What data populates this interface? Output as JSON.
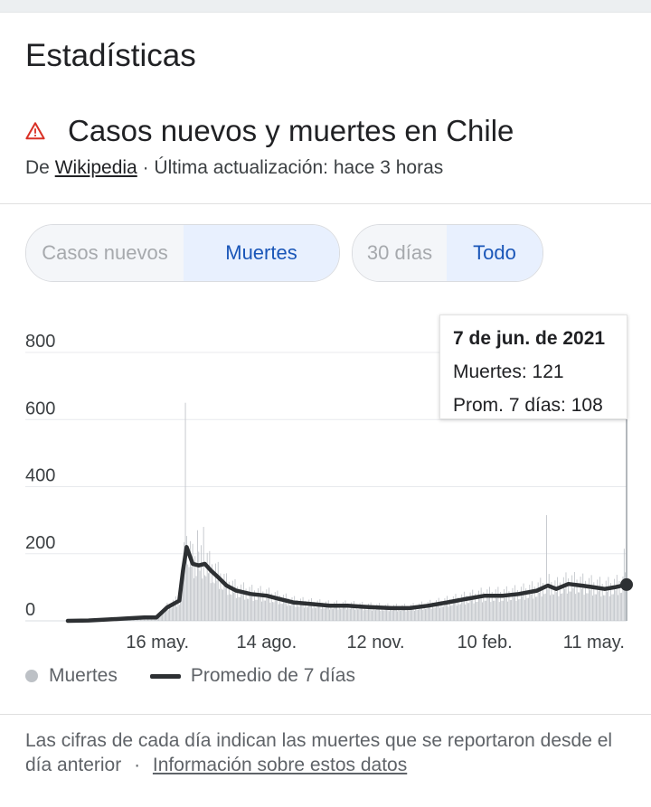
{
  "section_title": "Estadísticas",
  "headline": {
    "icon": "warning-icon",
    "title": "Casos nuevos y muertes en Chile"
  },
  "source": {
    "prefix": "De",
    "link": "Wikipedia",
    "suffix": "· Última actualización: hace 3 horas"
  },
  "metric_toggle": {
    "options": [
      "Casos nuevos",
      "Muertes"
    ],
    "selected": "Muertes"
  },
  "range_toggle": {
    "options": [
      "30 días",
      "Todo"
    ],
    "selected": "Todo"
  },
  "tooltip": {
    "date": "7 de jun. de 2021",
    "deaths": "Muertes: 121",
    "avg": "Prom. 7 días: 108"
  },
  "legend": {
    "bars": "Muertes",
    "line": "Promedio de 7 días"
  },
  "footer": {
    "text": "Las cifras de cada día indican las muertes que se reportaron desde el día anterior",
    "separator": "·",
    "link": "Información sobre estos datos"
  },
  "colors": {
    "bar": "#bdc1c6",
    "line": "#2d3033",
    "accent": "#1a56b8",
    "grid": "#e8eaed"
  },
  "chart_data": {
    "type": "bar",
    "ylim": [
      0,
      800
    ],
    "yticks": [
      "0",
      "200",
      "400",
      "600",
      "800"
    ],
    "xticks": [
      {
        "label": "16 may.",
        "date": "2020-05-16"
      },
      {
        "label": "14 ago.",
        "date": "2020-08-14"
      },
      {
        "label": "12 nov.",
        "date": "2020-11-12"
      },
      {
        "label": "10 feb.",
        "date": "2021-02-10"
      },
      {
        "label": "11 may.",
        "date": "2021-05-11"
      }
    ],
    "x_range": [
      "2020-03-03",
      "2021-06-07"
    ],
    "series": [
      {
        "name": "Promedio de 7 días",
        "type": "line",
        "points": [
          [
            "2020-03-03",
            0
          ],
          [
            "2020-03-20",
            1
          ],
          [
            "2020-04-05",
            4
          ],
          [
            "2020-04-20",
            7
          ],
          [
            "2020-05-05",
            10
          ],
          [
            "2020-05-15",
            10
          ],
          [
            "2020-05-24",
            40
          ],
          [
            "2020-06-03",
            60
          ],
          [
            "2020-06-06",
            150
          ],
          [
            "2020-06-09",
            220
          ],
          [
            "2020-06-14",
            170
          ],
          [
            "2020-06-19",
            165
          ],
          [
            "2020-06-24",
            170
          ],
          [
            "2020-06-29",
            150
          ],
          [
            "2020-07-05",
            130
          ],
          [
            "2020-07-12",
            105
          ],
          [
            "2020-07-20",
            90
          ],
          [
            "2020-08-01",
            80
          ],
          [
            "2020-08-14",
            75
          ],
          [
            "2020-08-25",
            65
          ],
          [
            "2020-09-05",
            55
          ],
          [
            "2020-09-20",
            50
          ],
          [
            "2020-10-05",
            45
          ],
          [
            "2020-10-20",
            45
          ],
          [
            "2020-11-01",
            42
          ],
          [
            "2020-11-12",
            40
          ],
          [
            "2020-11-25",
            38
          ],
          [
            "2020-12-10",
            38
          ],
          [
            "2020-12-25",
            45
          ],
          [
            "2021-01-10",
            55
          ],
          [
            "2021-01-25",
            65
          ],
          [
            "2021-02-10",
            75
          ],
          [
            "2021-02-25",
            75
          ],
          [
            "2021-03-10",
            80
          ],
          [
            "2021-03-25",
            90
          ],
          [
            "2021-04-03",
            105
          ],
          [
            "2021-04-10",
            95
          ],
          [
            "2021-04-20",
            110
          ],
          [
            "2021-05-01",
            105
          ],
          [
            "2021-05-11",
            100
          ],
          [
            "2021-05-20",
            95
          ],
          [
            "2021-05-28",
            100
          ],
          [
            "2021-06-07",
            108
          ]
        ]
      },
      {
        "name": "Muertes",
        "type": "bar",
        "note_spikes": [
          [
            "2020-06-08",
            650
          ],
          [
            "2020-06-18",
            270
          ],
          [
            "2020-06-23",
            280
          ],
          [
            "2021-04-02",
            315
          ],
          [
            "2021-06-05",
            215
          ]
        ],
        "last": [
          "2021-06-07",
          121
        ]
      }
    ]
  }
}
